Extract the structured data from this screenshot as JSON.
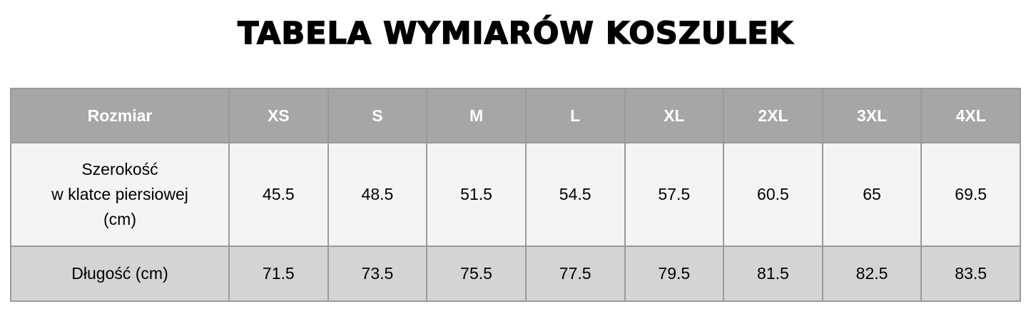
{
  "title": "TABELA WYMIARÓW KOSZULEK",
  "colors": {
    "header_bg": "#a6a6a6",
    "row1_bg": "#f4f4f4",
    "row2_bg": "#d4d4d4",
    "border": "#9a9a9a"
  },
  "table": {
    "headers": [
      "Rozmiar",
      "XS",
      "S",
      "M",
      "L",
      "XL",
      "2XL",
      "3XL",
      "4XL"
    ],
    "rows": [
      {
        "label_lines": [
          "Szerokość",
          "w klatce piersiowej",
          "(cm)"
        ],
        "values": [
          "45.5",
          "48.5",
          "51.5",
          "54.5",
          "57.5",
          "60.5",
          "65",
          "69.5"
        ]
      },
      {
        "label_lines": [
          "Długość (cm)"
        ],
        "values": [
          "71.5",
          "73.5",
          "75.5",
          "77.5",
          "79.5",
          "81.5",
          "82.5",
          "83.5"
        ]
      }
    ]
  }
}
